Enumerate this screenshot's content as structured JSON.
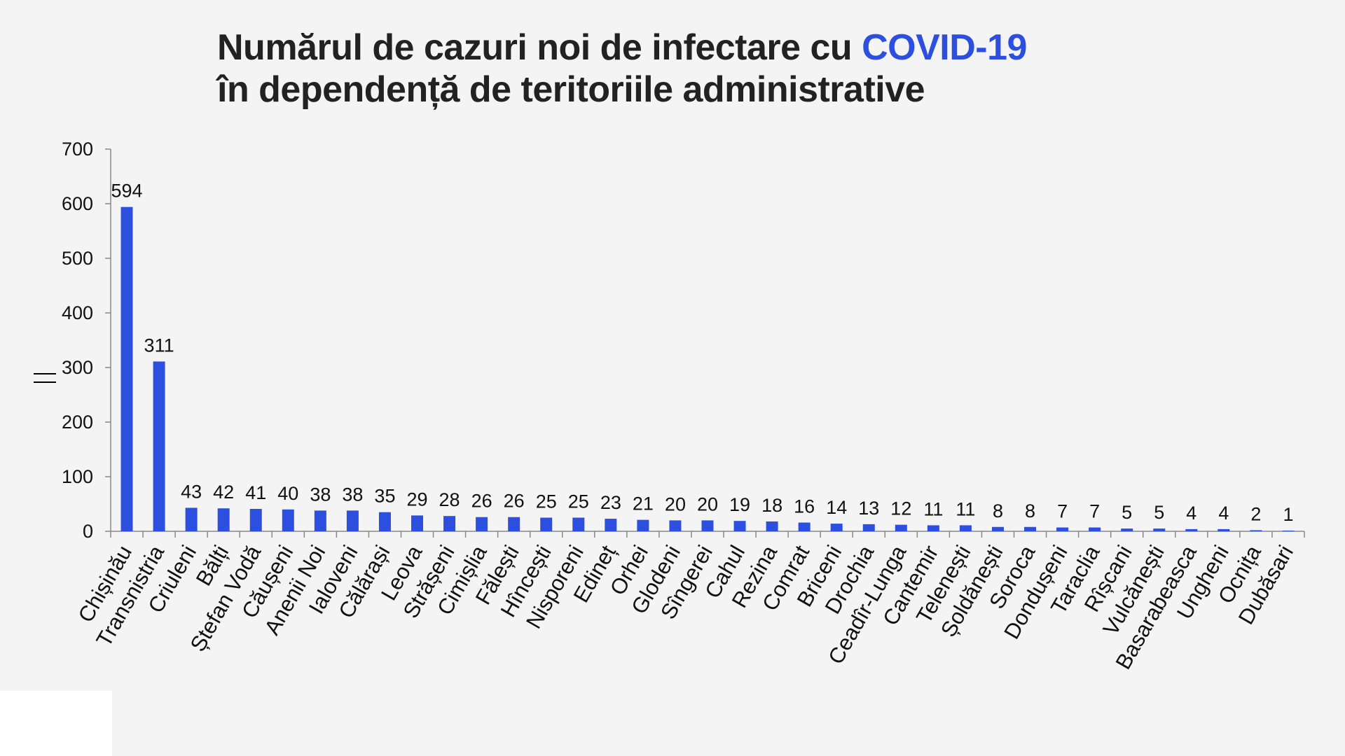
{
  "title": {
    "line1_prefix": "Numărul de cazuri noi de infectare cu ",
    "line1_accent": "COVID-19",
    "line2": "în dependență de teritoriile administrative",
    "accent_color": "#2c4fe0"
  },
  "chart_data": {
    "type": "bar",
    "title": "Numărul de cazuri noi de infectare cu COVID-19 în dependență de teritoriile administrative",
    "xlabel": "",
    "ylabel": "",
    "ylim": [
      0,
      700
    ],
    "yticks": [
      0,
      100,
      200,
      300,
      400,
      500,
      600,
      700
    ],
    "grid": false,
    "legend": "none",
    "bar_color": "#2c4fe0",
    "categories": [
      "Chișinău",
      "Transnistria",
      "Criuleni",
      "Bălți",
      "Ștefan Vodă",
      "Căușeni",
      "Anenii Noi",
      "Ialoveni",
      "Călărași",
      "Leova",
      "Strășeni",
      "Cimișlia",
      "Fălești",
      "Hîncești",
      "Nisporeni",
      "Edineț",
      "Orhei",
      "Glodeni",
      "Sîngerei",
      "Cahul",
      "Rezina",
      "Comrat",
      "Briceni",
      "Drochia",
      "Ceadîr-Lunga",
      "Cantemir",
      "Telenești",
      "Șoldănești",
      "Soroca",
      "Dondușeni",
      "Taraclia",
      "Rîșcani",
      "Vulcănești",
      "Basarabeasca",
      "Ungheni",
      "Ocnița",
      "Dubăsari"
    ],
    "values": [
      594,
      311,
      43,
      42,
      41,
      40,
      38,
      38,
      35,
      29,
      28,
      26,
      26,
      25,
      25,
      23,
      21,
      20,
      20,
      19,
      18,
      16,
      14,
      13,
      12,
      11,
      11,
      8,
      8,
      7,
      7,
      5,
      5,
      4,
      4,
      2,
      1
    ]
  }
}
